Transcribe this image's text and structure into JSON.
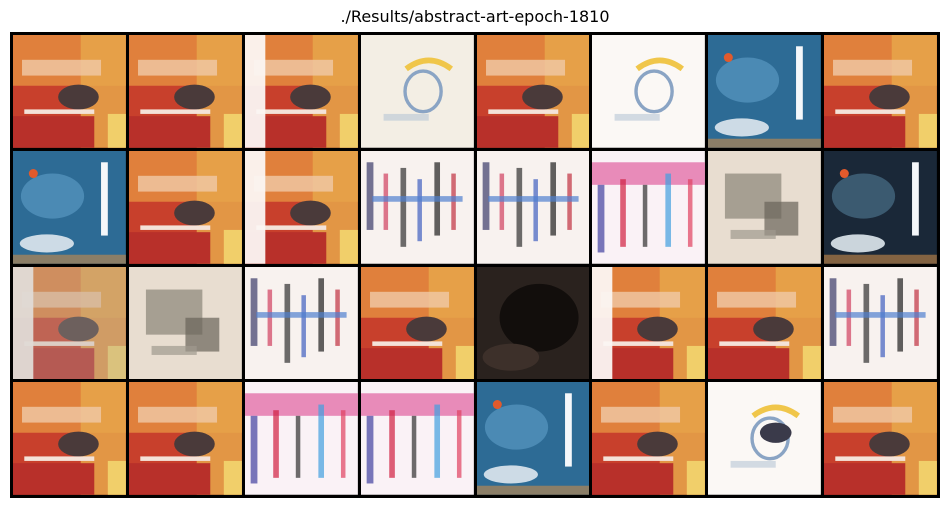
{
  "title": "./Results/abstract-art-epoch-1810",
  "tiles": [
    [
      "red",
      "red",
      "red-white",
      "pale-face",
      "red",
      "pale-face-light",
      "blue",
      "red"
    ],
    [
      "blue",
      "red",
      "red-white",
      "pale-sketch",
      "pale-sketch",
      "pink-sketch",
      "grey-sketch",
      "dark-blue"
    ],
    [
      "red-white-grey",
      "grey-sketch",
      "pale-sketch",
      "red",
      "dark",
      "red-white",
      "red",
      "pale-sketch"
    ],
    [
      "red",
      "red",
      "pink-sketch",
      "pink-sketch",
      "blue",
      "red",
      "pale-yellow",
      "red"
    ]
  ]
}
